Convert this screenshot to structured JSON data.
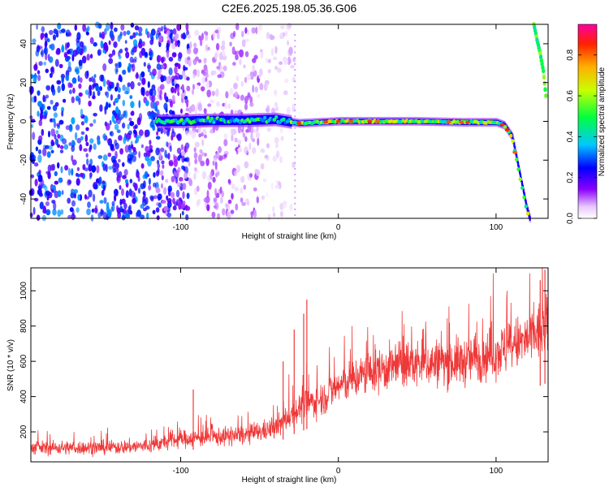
{
  "title": "C2E6.2025.198.05.36.G06",
  "chart_data": [
    {
      "type": "heatmap",
      "xlabel": "Height of straight line (km)",
      "ylabel": "Frequency (Hz)",
      "xlim": [
        -195,
        133
      ],
      "ylim": [
        -50,
        50
      ],
      "xticks": [
        -100,
        0,
        100
      ],
      "yticks": [
        -40,
        -20,
        0,
        20,
        40
      ],
      "colorbar": {
        "label": "Normalized spectral amplitude",
        "range": [
          0,
          0.95
        ],
        "ticks": [
          0.0,
          0.2,
          0.4,
          0.6,
          0.8
        ]
      },
      "ridge": {
        "x": [
          -115,
          -100,
          -80,
          -60,
          -40,
          -25,
          0,
          20,
          50,
          80,
          100,
          105,
          110,
          113,
          116,
          119,
          121
        ],
        "y": [
          0,
          0,
          0.5,
          0.5,
          1,
          -1,
          0,
          0,
          0,
          -0.5,
          -0.5,
          -2,
          -8,
          -20,
          -32,
          -44,
          -50
        ]
      },
      "upper_branch": {
        "x": [
          124,
          126,
          128,
          130,
          132
        ],
        "y": [
          50,
          42,
          35,
          26,
          10
        ]
      },
      "noise_regions": [
        {
          "x": [
            -195,
            -115
          ],
          "density": "dense"
        },
        {
          "x": [
            -115,
            -95
          ],
          "density": "moderate"
        },
        {
          "x": [
            -95,
            -50
          ],
          "density": "sparse"
        },
        {
          "x": [
            -50,
            -28
          ],
          "density": "faint"
        }
      ]
    },
    {
      "type": "line",
      "xlabel": "Height of straight line (km)",
      "ylabel": "SNR (10 * v/v)",
      "xlim": [
        -195,
        133
      ],
      "ylim": [
        30,
        1130
      ],
      "xticks": [
        -100,
        0,
        100
      ],
      "yticks": [
        200,
        400,
        600,
        800,
        1000
      ],
      "series": [
        {
          "color": "#ef3838",
          "trend_x": [
            -195,
            -150,
            -120,
            -100,
            -80,
            -60,
            -40,
            -30,
            -20,
            -10,
            0,
            20,
            40,
            60,
            80,
            100,
            120,
            133
          ],
          "trend_y": [
            110,
            110,
            120,
            160,
            170,
            180,
            220,
            300,
            360,
            390,
            460,
            540,
            580,
            590,
            600,
            650,
            720,
            800
          ],
          "spikes": [
            {
              "x": -92,
              "y": 440
            },
            {
              "x": -35,
              "y": 600
            },
            {
              "x": -28,
              "y": 780
            },
            {
              "x": -22,
              "y": 870
            },
            {
              "x": -20,
              "y": 950
            },
            {
              "x": 128,
              "y": 1060
            },
            {
              "x": 131,
              "y": 1120
            }
          ]
        }
      ]
    }
  ]
}
